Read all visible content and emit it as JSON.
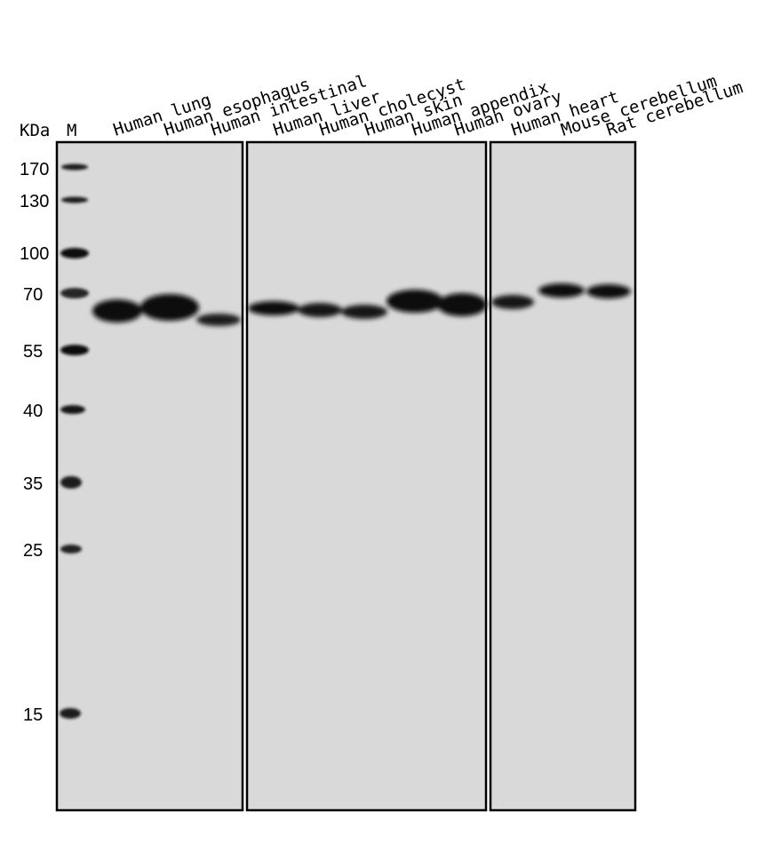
{
  "header": {
    "kda_label": "KDa",
    "marker_lane_label": "M"
  },
  "lanes": [
    "Human lung",
    "Human esophagus",
    "Human intestinal",
    "Human liver",
    "Human cholecyst",
    "Human skin",
    "Human appendix",
    "Human ovary",
    "Human heart",
    "Mouse cerebellum",
    "Rat cerebellum"
  ],
  "markers": [
    {
      "label": "170",
      "kda": 170
    },
    {
      "label": "130",
      "kda": 130
    },
    {
      "label": "100",
      "kda": 100
    },
    {
      "label": "70",
      "kda": 70
    },
    {
      "label": "55",
      "kda": 55
    },
    {
      "label": "40",
      "kda": 40
    },
    {
      "label": "35",
      "kda": 35
    },
    {
      "label": "25",
      "kda": 25
    },
    {
      "label": "15",
      "kda": 15
    }
  ],
  "colors": {
    "membrane": "#d9d9d9",
    "band": "#0f0f0f",
    "border": "#000000"
  }
}
